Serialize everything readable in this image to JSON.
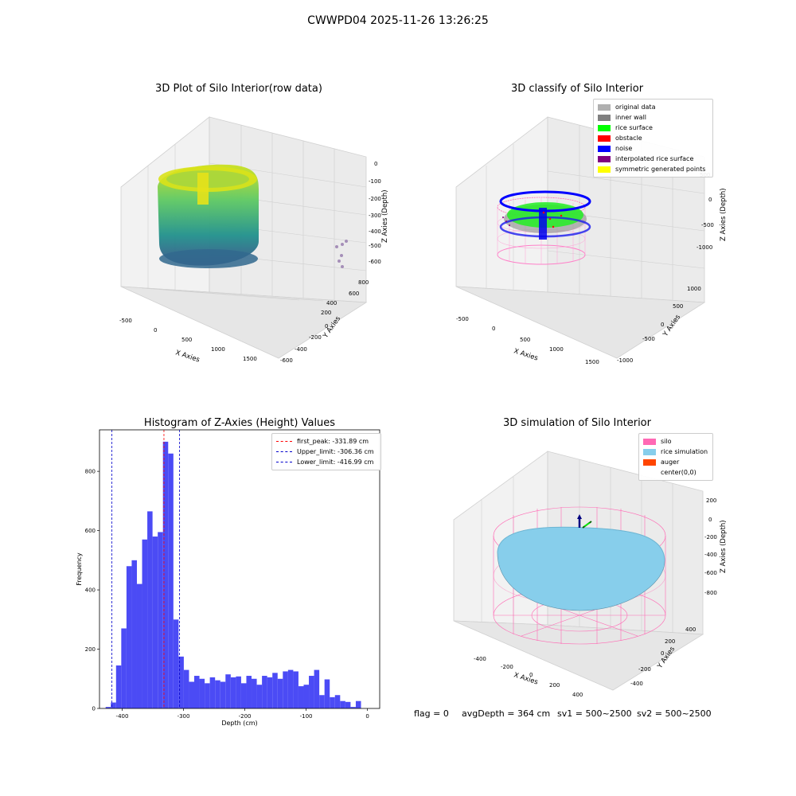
{
  "suptitle": "CWWPD04 2025-11-26 13:26:25",
  "footer": {
    "flag": "flag = 0",
    "avg_depth": "avgDepth = 364 cm",
    "sv1": "sv1 = 500~2500",
    "sv2": "sv2 = 500~2500"
  },
  "chart_data": [
    {
      "type": "scatter",
      "title": "3D Plot of Silo Interior(row data)",
      "xlabel": "X Axies",
      "ylabel": "Y Axies",
      "zlabel": "Z Axies (Depth)",
      "x_ticks": [
        "-500",
        "0",
        "500",
        "1000",
        "1500"
      ],
      "y_ticks": [
        "-600",
        "-400",
        "-200",
        "0",
        "200",
        "400",
        "600",
        "800"
      ],
      "z_ticks": [
        "0",
        "-100",
        "-200",
        "-300",
        "-400",
        "-500",
        "-600"
      ],
      "colormap": "viridis"
    },
    {
      "type": "scatter",
      "title": "3D classify of Silo Interior",
      "xlabel": "X Axies",
      "ylabel": "Y Axies",
      "zlabel": "Z Axies (Depth)",
      "x_ticks": [
        "-500",
        "0",
        "500",
        "1000",
        "1500"
      ],
      "y_ticks": [
        "-1000",
        "-500",
        "0",
        "500",
        "1000"
      ],
      "z_ticks": [
        "500",
        "0",
        "-500",
        "-1000"
      ],
      "legend": [
        {
          "label": "original data",
          "color": "#b0b0b0"
        },
        {
          "label": "inner wall",
          "color": "#808080"
        },
        {
          "label": "rice surface",
          "color": "#00ff00"
        },
        {
          "label": "obstacle",
          "color": "#ff0000"
        },
        {
          "label": "noise",
          "color": "#0000ff"
        },
        {
          "label": "interpolated rice surface",
          "color": "#800080"
        },
        {
          "label": "symmetric generated points",
          "color": "#ffff00"
        }
      ]
    },
    {
      "type": "bar",
      "title": "Histogram of Z-Axies (Height) Values",
      "xlabel": "Depth (cm)",
      "ylabel": "Frequency",
      "bin_start": -427,
      "bin_width": 8.5,
      "values": [
        5,
        20,
        145,
        270,
        480,
        500,
        420,
        570,
        665,
        580,
        595,
        900,
        860,
        300,
        175,
        130,
        90,
        110,
        100,
        85,
        105,
        95,
        90,
        115,
        105,
        108,
        85,
        110,
        100,
        80,
        110,
        105,
        120,
        100,
        125,
        130,
        125,
        75,
        80,
        110,
        130,
        45,
        98,
        38,
        45,
        25,
        22,
        5,
        25
      ],
      "xlim": [
        -437,
        20
      ],
      "ylim": [
        0,
        940
      ],
      "x_ticks": [
        -400,
        -300,
        -200,
        -100,
        0
      ],
      "y_ticks": [
        0,
        200,
        400,
        600,
        800
      ],
      "bar_color": "#4b4bf5",
      "vlines": [
        {
          "label": "first_peak: -331.89 cm",
          "value": -331.89,
          "color": "#ff0000"
        },
        {
          "label": "Upper_limit: -306.36 cm",
          "value": -306.36,
          "color": "#0000cc"
        },
        {
          "label": "Lower_limit: -416.99 cm",
          "value": -416.99,
          "color": "#0000cc"
        }
      ],
      "legend_position": "top-right"
    },
    {
      "type": "scatter",
      "title": "3D simulation of Silo Interior",
      "xlabel": "X Axies",
      "ylabel": "Y Axies",
      "zlabel": "Z Axies (Depth)",
      "x_ticks": [
        "-400",
        "-200",
        "0",
        "200",
        "400"
      ],
      "y_ticks": [
        "-400",
        "-200",
        "0",
        "200",
        "400"
      ],
      "z_ticks": [
        "200",
        "0",
        "-200",
        "-400",
        "-600",
        "-800"
      ],
      "legend": [
        {
          "label": "silo",
          "color": "#ff69b4"
        },
        {
          "label": "rice simulation",
          "color": "#87ceeb"
        },
        {
          "label": "auger",
          "color": "#ff4500"
        },
        {
          "label": "center(0,0)",
          "color": "#ffffff"
        }
      ]
    }
  ]
}
